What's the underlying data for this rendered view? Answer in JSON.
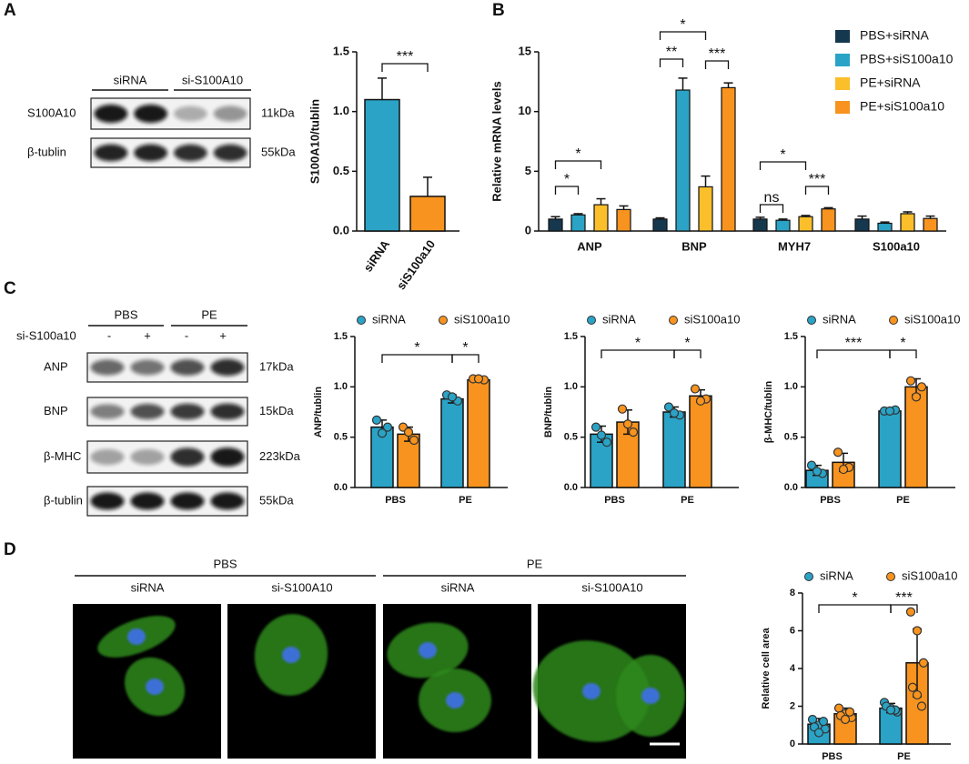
{
  "figure": {
    "panel_labels": [
      "A",
      "B",
      "C",
      "D"
    ],
    "blot_a": {
      "groups": [
        "siRNA",
        "si-S100A10"
      ],
      "rows": [
        {
          "protein": "S100A10",
          "size": "11kDa"
        },
        {
          "protein": "β-tublin",
          "size": "55kDa"
        }
      ]
    },
    "blot_c": {
      "groups": [
        "PBS",
        "PE"
      ],
      "treatment": "si-S100a10",
      "signs": [
        "-",
        "+",
        "-",
        "+"
      ],
      "rows": [
        {
          "protein": "ANP",
          "size": "17kDa"
        },
        {
          "protein": "BNP",
          "size": "15kDa"
        },
        {
          "protein": "β-MHC",
          "size": "223kDa"
        },
        {
          "protein": "β-tublin",
          "size": "55kDa"
        }
      ]
    },
    "images_d": {
      "groups": [
        "PBS",
        "PE"
      ],
      "conditions": [
        "siRNA",
        "si-S100A10",
        "siRNA",
        "si-S100A10"
      ]
    }
  },
  "chart_data": [
    {
      "type": "bar",
      "ylabel": "S100A10/tublin",
      "categories": [
        "siRNA",
        "siS100a10"
      ],
      "values": [
        1.1,
        0.29
      ],
      "errors": [
        0.18,
        0.16
      ],
      "colors": [
        "#2aa3c6",
        "#f7931e"
      ],
      "ylim": [
        0,
        1.5
      ],
      "yticks": [
        {
          "value": 0,
          "label": "0.0"
        },
        0.5,
        {
          "value": 1,
          "label": "1.0"
        },
        1.5
      ],
      "annotations": [
        "***"
      ]
    },
    {
      "type": "grouped-bar",
      "ylabel": "Relative mRNA levels",
      "categories": [
        "ANP",
        "BNP",
        "MYH7",
        "S100a10"
      ],
      "legend": "upper right",
      "series": [
        {
          "name": "PBS+siRNA",
          "color": "#15384f",
          "values": [
            1.0,
            1.0,
            1.0,
            1.0
          ],
          "errors": [
            0.2,
            0.1,
            0.15,
            0.25
          ]
        },
        {
          "name": "PBS+siS100a10",
          "color": "#2aa3c6",
          "values": [
            1.35,
            11.8,
            0.9,
            0.65
          ],
          "errors": [
            0.1,
            1.0,
            0.1,
            0.1
          ]
        },
        {
          "name": "PE+siRNA",
          "color": "#fbbf2b",
          "values": [
            2.2,
            3.7,
            1.2,
            1.45
          ],
          "errors": [
            0.5,
            0.9,
            0.1,
            0.15
          ]
        },
        {
          "name": "PE+siS100a10",
          "color": "#f7931e",
          "values": [
            1.8,
            12.0,
            1.85,
            1.05
          ],
          "errors": [
            0.3,
            0.4,
            0.1,
            0.2
          ]
        }
      ],
      "ylim": [
        0,
        15
      ],
      "yticks": [
        0,
        5,
        10,
        15
      ],
      "annotations": [
        "*",
        "*",
        "**",
        "*",
        "***",
        "ns",
        "*",
        "***"
      ]
    },
    {
      "type": "dot-bar",
      "ylabel": "ANP/tublin",
      "categories": [
        "PBS",
        "PE"
      ],
      "series": [
        {
          "name": "siRNA",
          "color": "#2aa3c6",
          "values": [
            0.6,
            0.88
          ],
          "errors": [
            0.07,
            0.04
          ],
          "points": [
            [
              0.67,
              0.6,
              0.54
            ],
            [
              0.92,
              0.86,
              0.9
            ]
          ]
        },
        {
          "name": "siS100a10",
          "color": "#f7931e",
          "values": [
            0.53,
            1.07
          ],
          "errors": [
            0.07,
            0.01
          ],
          "points": [
            [
              0.6,
              0.47,
              0.55
            ],
            [
              1.08,
              1.07,
              1.08
            ]
          ]
        }
      ],
      "ylim": [
        0,
        1.5
      ],
      "yticks": [
        {
          "value": 0,
          "label": "0.0"
        },
        0.5,
        {
          "value": 1,
          "label": "1.0"
        },
        1.5
      ],
      "annotations": [
        "*",
        "*"
      ]
    },
    {
      "type": "dot-bar",
      "ylabel": "BNP/tublin",
      "categories": [
        "PBS",
        "PE"
      ],
      "series": [
        {
          "name": "siRNA",
          "color": "#2aa3c6",
          "values": [
            0.53,
            0.75
          ],
          "errors": [
            0.08,
            0.05
          ],
          "points": [
            [
              0.6,
              0.45,
              0.52
            ],
            [
              0.8,
              0.72,
              0.74
            ]
          ]
        },
        {
          "name": "siS100a10",
          "color": "#f7931e",
          "values": [
            0.65,
            0.91
          ],
          "errors": [
            0.12,
            0.06
          ],
          "points": [
            [
              0.78,
              0.55,
              0.63
            ],
            [
              0.98,
              0.88,
              0.86
            ]
          ]
        }
      ],
      "ylim": [
        0,
        1.5
      ],
      "yticks": [
        {
          "value": 0,
          "label": "0.0"
        },
        0.5,
        {
          "value": 1,
          "label": "1.0"
        },
        1.5
      ],
      "annotations": [
        "*",
        "*"
      ]
    },
    {
      "type": "dot-bar",
      "ylabel": "β-MHC/tublin",
      "categories": [
        "PBS",
        "PE"
      ],
      "series": [
        {
          "name": "siRNA",
          "color": "#2aa3c6",
          "values": [
            0.17,
            0.76
          ],
          "errors": [
            0.05,
            0.01
          ],
          "points": [
            [
              0.22,
              0.14,
              0.16
            ],
            [
              0.76,
              0.77,
              0.76
            ]
          ]
        },
        {
          "name": "siS100a10",
          "color": "#f7931e",
          "values": [
            0.25,
            1.0
          ],
          "errors": [
            0.09,
            0.08
          ],
          "points": [
            [
              0.35,
              0.2,
              0.18
            ],
            [
              1.06,
              1.0,
              0.9
            ]
          ]
        }
      ],
      "ylim": [
        0,
        1.5
      ],
      "yticks": [
        {
          "value": 0,
          "label": "0.0"
        },
        0.5,
        {
          "value": 1,
          "label": "1.0"
        },
        1.5
      ],
      "annotations": [
        "***",
        "*"
      ]
    },
    {
      "type": "dot-bar",
      "ylabel": "Relative cell area",
      "categories": [
        "PBS",
        "PE"
      ],
      "series": [
        {
          "name": "siRNA",
          "color": "#2aa3c6",
          "values": [
            1.05,
            1.9
          ],
          "errors": [
            0.3,
            0.25
          ],
          "points": [
            [
              1.3,
              1.0,
              0.8,
              0.9,
              1.2,
              0.6
            ],
            [
              2.2,
              1.9,
              1.7,
              2.0,
              1.8,
              1.8
            ]
          ]
        },
        {
          "name": "siS100a10",
          "color": "#f7931e",
          "values": [
            1.6,
            4.3
          ],
          "errors": [
            0.3,
            1.8
          ],
          "points": [
            [
              1.9,
              1.6,
              1.4,
              1.5,
              1.7,
              1.3
            ],
            [
              7.0,
              6.0,
              4.3,
              3.0,
              2.0,
              2.6
            ]
          ]
        }
      ],
      "ylim": [
        0,
        8
      ],
      "yticks": [
        0,
        2,
        4,
        6,
        8
      ],
      "annotations": [
        "*",
        "***"
      ]
    }
  ]
}
